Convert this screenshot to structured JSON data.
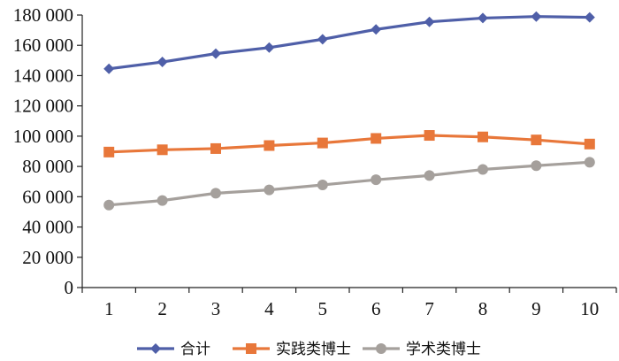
{
  "chart_data": {
    "type": "line",
    "x": [
      1,
      2,
      3,
      4,
      5,
      6,
      7,
      8,
      9,
      10
    ],
    "x_tick_labels": [
      "1",
      "2",
      "3",
      "4",
      "5",
      "6",
      "7",
      "8",
      "9",
      "10"
    ],
    "ylim": [
      0,
      180000
    ],
    "y_tick_labels": [
      "0",
      "20 000",
      "40 000",
      "60 000",
      "80 000",
      "100 000",
      "120 000",
      "140 000",
      "160 000",
      "180 000"
    ],
    "y_tick_values": [
      0,
      20000,
      40000,
      60000,
      80000,
      100000,
      120000,
      140000,
      160000,
      180000
    ],
    "grid": false,
    "legend_position": "bottom",
    "series": [
      {
        "name": "合计",
        "color": "#4f5fa8",
        "marker": "diamond",
        "values": [
          144500,
          149000,
          154500,
          158500,
          164000,
          170500,
          175500,
          178000,
          179000,
          178500
        ]
      },
      {
        "name": "实践类博士",
        "color": "#e8773a",
        "marker": "square",
        "values": [
          89500,
          91000,
          91800,
          93800,
          95500,
          98500,
          100500,
          99500,
          97500,
          94800
        ]
      },
      {
        "name": "学术类博士",
        "color": "#a5a09c",
        "marker": "circle",
        "values": [
          54500,
          57500,
          62300,
          64500,
          67800,
          71200,
          74000,
          78000,
          80500,
          82800
        ]
      }
    ]
  }
}
